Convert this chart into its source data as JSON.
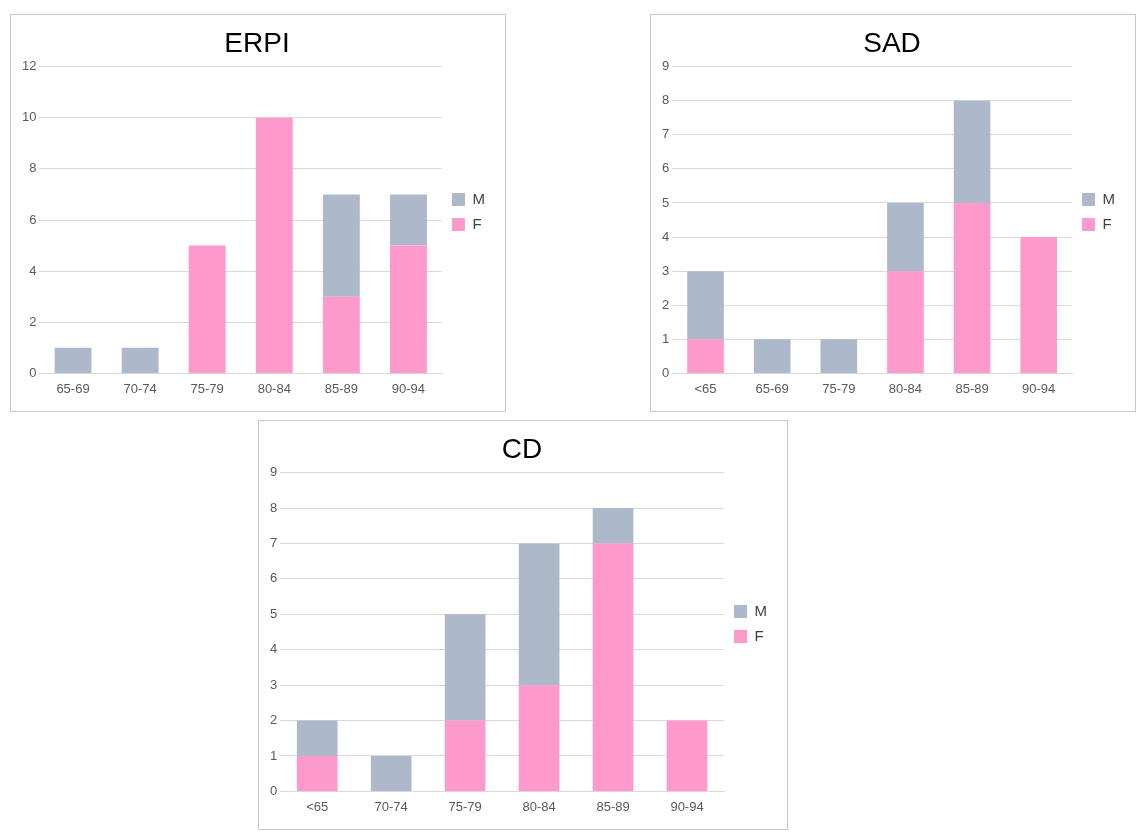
{
  "chart_data": [
    {
      "type": "bar",
      "title": "ERPI",
      "categories": [
        "65-69",
        "70-74",
        "75-79",
        "80-84",
        "85-89",
        "90-94"
      ],
      "stacked": true,
      "legend": "right",
      "grid": "y",
      "ylim": [
        0,
        12
      ],
      "yticks": [
        0,
        2,
        4,
        6,
        8,
        10,
        12
      ],
      "series": [
        {
          "name": "F",
          "color": "#fe99cc",
          "values": [
            0,
            0,
            5,
            10,
            3,
            5
          ]
        },
        {
          "name": "M",
          "color": "#adb9ca",
          "values": [
            1,
            1,
            0,
            0,
            4,
            2
          ]
        }
      ]
    },
    {
      "type": "bar",
      "title": "SAD",
      "categories": [
        "<65",
        "65-69",
        "75-79",
        "80-84",
        "85-89",
        "90-94"
      ],
      "stacked": true,
      "legend": "right",
      "grid": "y",
      "ylim": [
        0,
        9
      ],
      "yticks": [
        0,
        1,
        2,
        3,
        4,
        5,
        6,
        7,
        8,
        9
      ],
      "series": [
        {
          "name": "F",
          "color": "#fe99cc",
          "values": [
            1,
            0,
            0,
            3,
            5,
            4
          ]
        },
        {
          "name": "M",
          "color": "#adb9ca",
          "values": [
            2,
            1,
            1,
            2,
            3,
            0
          ]
        }
      ]
    },
    {
      "type": "bar",
      "title": "CD",
      "categories": [
        "<65",
        "70-74",
        "75-79",
        "80-84",
        "85-89",
        "90-94"
      ],
      "stacked": true,
      "legend": "right",
      "grid": "y",
      "ylim": [
        0,
        9
      ],
      "yticks": [
        0,
        1,
        2,
        3,
        4,
        5,
        6,
        7,
        8,
        9
      ],
      "series": [
        {
          "name": "F",
          "color": "#fe99cc",
          "values": [
            1,
            0,
            2,
            3,
            7,
            2
          ]
        },
        {
          "name": "M",
          "color": "#adb9ca",
          "values": [
            1,
            1,
            3,
            4,
            1,
            0
          ]
        }
      ]
    }
  ]
}
